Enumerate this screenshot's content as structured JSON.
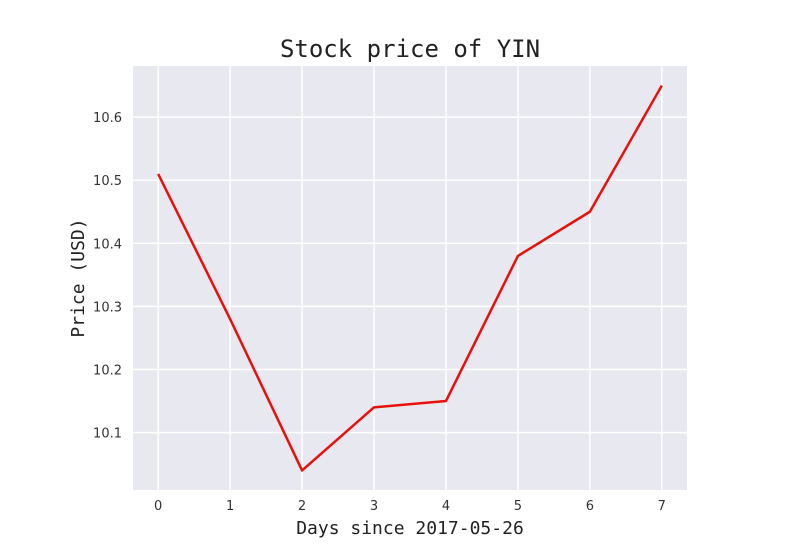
{
  "chart_data": {
    "type": "line",
    "title": "Stock price of YIN",
    "xlabel": "Days since 2017-05-26",
    "ylabel": "Price (USD)",
    "x": [
      0,
      1,
      2,
      3,
      4,
      5,
      6,
      7
    ],
    "series": [
      {
        "values": [
          10.51,
          10.28,
          10.04,
          10.14,
          10.15,
          10.38,
          10.45,
          10.65
        ]
      }
    ],
    "xticks": [
      "0",
      "1",
      "2",
      "3",
      "4",
      "5",
      "6",
      "7"
    ],
    "yticks": [
      "10.1",
      "10.2",
      "10.3",
      "10.4",
      "10.5",
      "10.6"
    ],
    "xlim": [
      -0.35,
      7.35
    ],
    "ylim": [
      10.009,
      10.681
    ],
    "grid": true,
    "legend": "none",
    "colors": {
      "line": "#e8100a",
      "plot_bg": "#e8e8f0",
      "grid": "#ffffff"
    }
  }
}
